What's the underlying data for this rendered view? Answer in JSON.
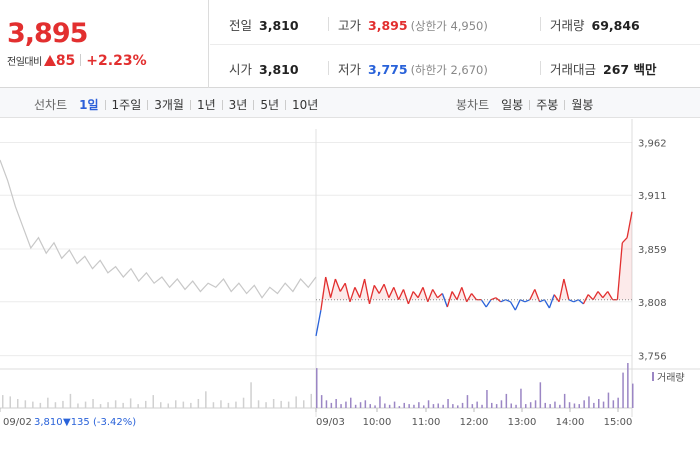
{
  "quote": {
    "price": "3,895",
    "change_label": "전일대비",
    "change_amount": "85",
    "change_rate": "+2.23%"
  },
  "info": {
    "prev_close": {
      "label": "전일",
      "value": "3,810"
    },
    "high": {
      "label": "고가",
      "value": "3,895",
      "limit_label": "(상한가 4,950)"
    },
    "volume": {
      "label": "거래량",
      "value": "69,846"
    },
    "open": {
      "label": "시가",
      "value": "3,810"
    },
    "low": {
      "label": "저가",
      "value": "3,775",
      "limit_label": "(하한가 2,670)"
    },
    "trade_value": {
      "label": "거래대금",
      "value": "267 백만"
    }
  },
  "line_chart_tabs": {
    "label": "선차트",
    "items": [
      "1일",
      "1주일",
      "3개월",
      "1년",
      "3년",
      "5년",
      "10년"
    ],
    "active": "1일"
  },
  "candle_chart_tabs": {
    "label": "봉차트",
    "items": [
      "일봉",
      "주봉",
      "월봉"
    ]
  },
  "volume_legend": "거래량",
  "prev_day_summary": {
    "date": "09/02",
    "close": "3,810",
    "change": "▼135",
    "rate": "(-3.42%)"
  },
  "colors": {
    "up": "#e22f2f",
    "down": "#2962d9",
    "prev_day_line": "#c8c8c8",
    "volume_today": "#9b86c4",
    "volume_prev": "#d0d0d0"
  },
  "chart_data": {
    "type": "line",
    "y_ticks": [
      "3,962",
      "3,911",
      "3,859",
      "3,808",
      "3,756"
    ],
    "ylim": [
      3745,
      3975
    ],
    "base_price": 3810,
    "x_ticks": [
      "09/02",
      "09/03",
      "10:00",
      "11:00",
      "12:00",
      "13:00",
      "14:00",
      "15:00"
    ],
    "prev_day": {
      "date": "09/02",
      "values": [
        3945,
        3925,
        3900,
        3880,
        3860,
        3870,
        3855,
        3865,
        3850,
        3858,
        3845,
        3852,
        3840,
        3848,
        3836,
        3842,
        3832,
        3840,
        3828,
        3836,
        3826,
        3832,
        3822,
        3830,
        3820,
        3828,
        3818,
        3826,
        3822,
        3830,
        3818,
        3826,
        3816,
        3824,
        3812,
        3822,
        3816,
        3826,
        3818,
        3830,
        3822,
        3832
      ]
    },
    "today": {
      "date": "09/03",
      "open": 3810,
      "values": [
        3775,
        3800,
        3832,
        3812,
        3830,
        3818,
        3826,
        3808,
        3822,
        3812,
        3830,
        3806,
        3824,
        3816,
        3825,
        3812,
        3822,
        3810,
        3820,
        3806,
        3818,
        3812,
        3822,
        3808,
        3820,
        3812,
        3816,
        3803,
        3818,
        3810,
        3822,
        3808,
        3816,
        3810,
        3810,
        3803,
        3810,
        3812,
        3808,
        3810,
        3808,
        3800,
        3810,
        3808,
        3810,
        3820,
        3808,
        3810,
        3802,
        3815,
        3808,
        3830,
        3810,
        3808,
        3810,
        3806,
        3815,
        3810,
        3818,
        3812,
        3818,
        3810,
        3810,
        3865,
        3870,
        3895
      ]
    },
    "volume_today": [
      62,
      20,
      12,
      8,
      14,
      6,
      10,
      16,
      5,
      9,
      12,
      6,
      4,
      18,
      7,
      5,
      10,
      3,
      8,
      6,
      5,
      9,
      4,
      12,
      6,
      7,
      5,
      14,
      6,
      4,
      8,
      20,
      6,
      10,
      5,
      28,
      8,
      6,
      12,
      22,
      7,
      5,
      30,
      6,
      9,
      12,
      40,
      8,
      6,
      10,
      5,
      22,
      9,
      7,
      6,
      12,
      18,
      8,
      14,
      10,
      24,
      12,
      16,
      55,
      70,
      38
    ],
    "volume_prev": [
      20,
      18,
      14,
      12,
      10,
      8,
      16,
      9,
      11,
      22,
      7,
      10,
      14,
      6,
      9,
      12,
      8,
      15,
      6,
      11,
      20,
      9,
      7,
      12,
      10,
      8,
      14,
      26,
      9,
      12,
      8,
      10,
      16,
      40,
      12,
      9,
      14,
      11,
      10,
      18,
      12,
      22
    ]
  }
}
